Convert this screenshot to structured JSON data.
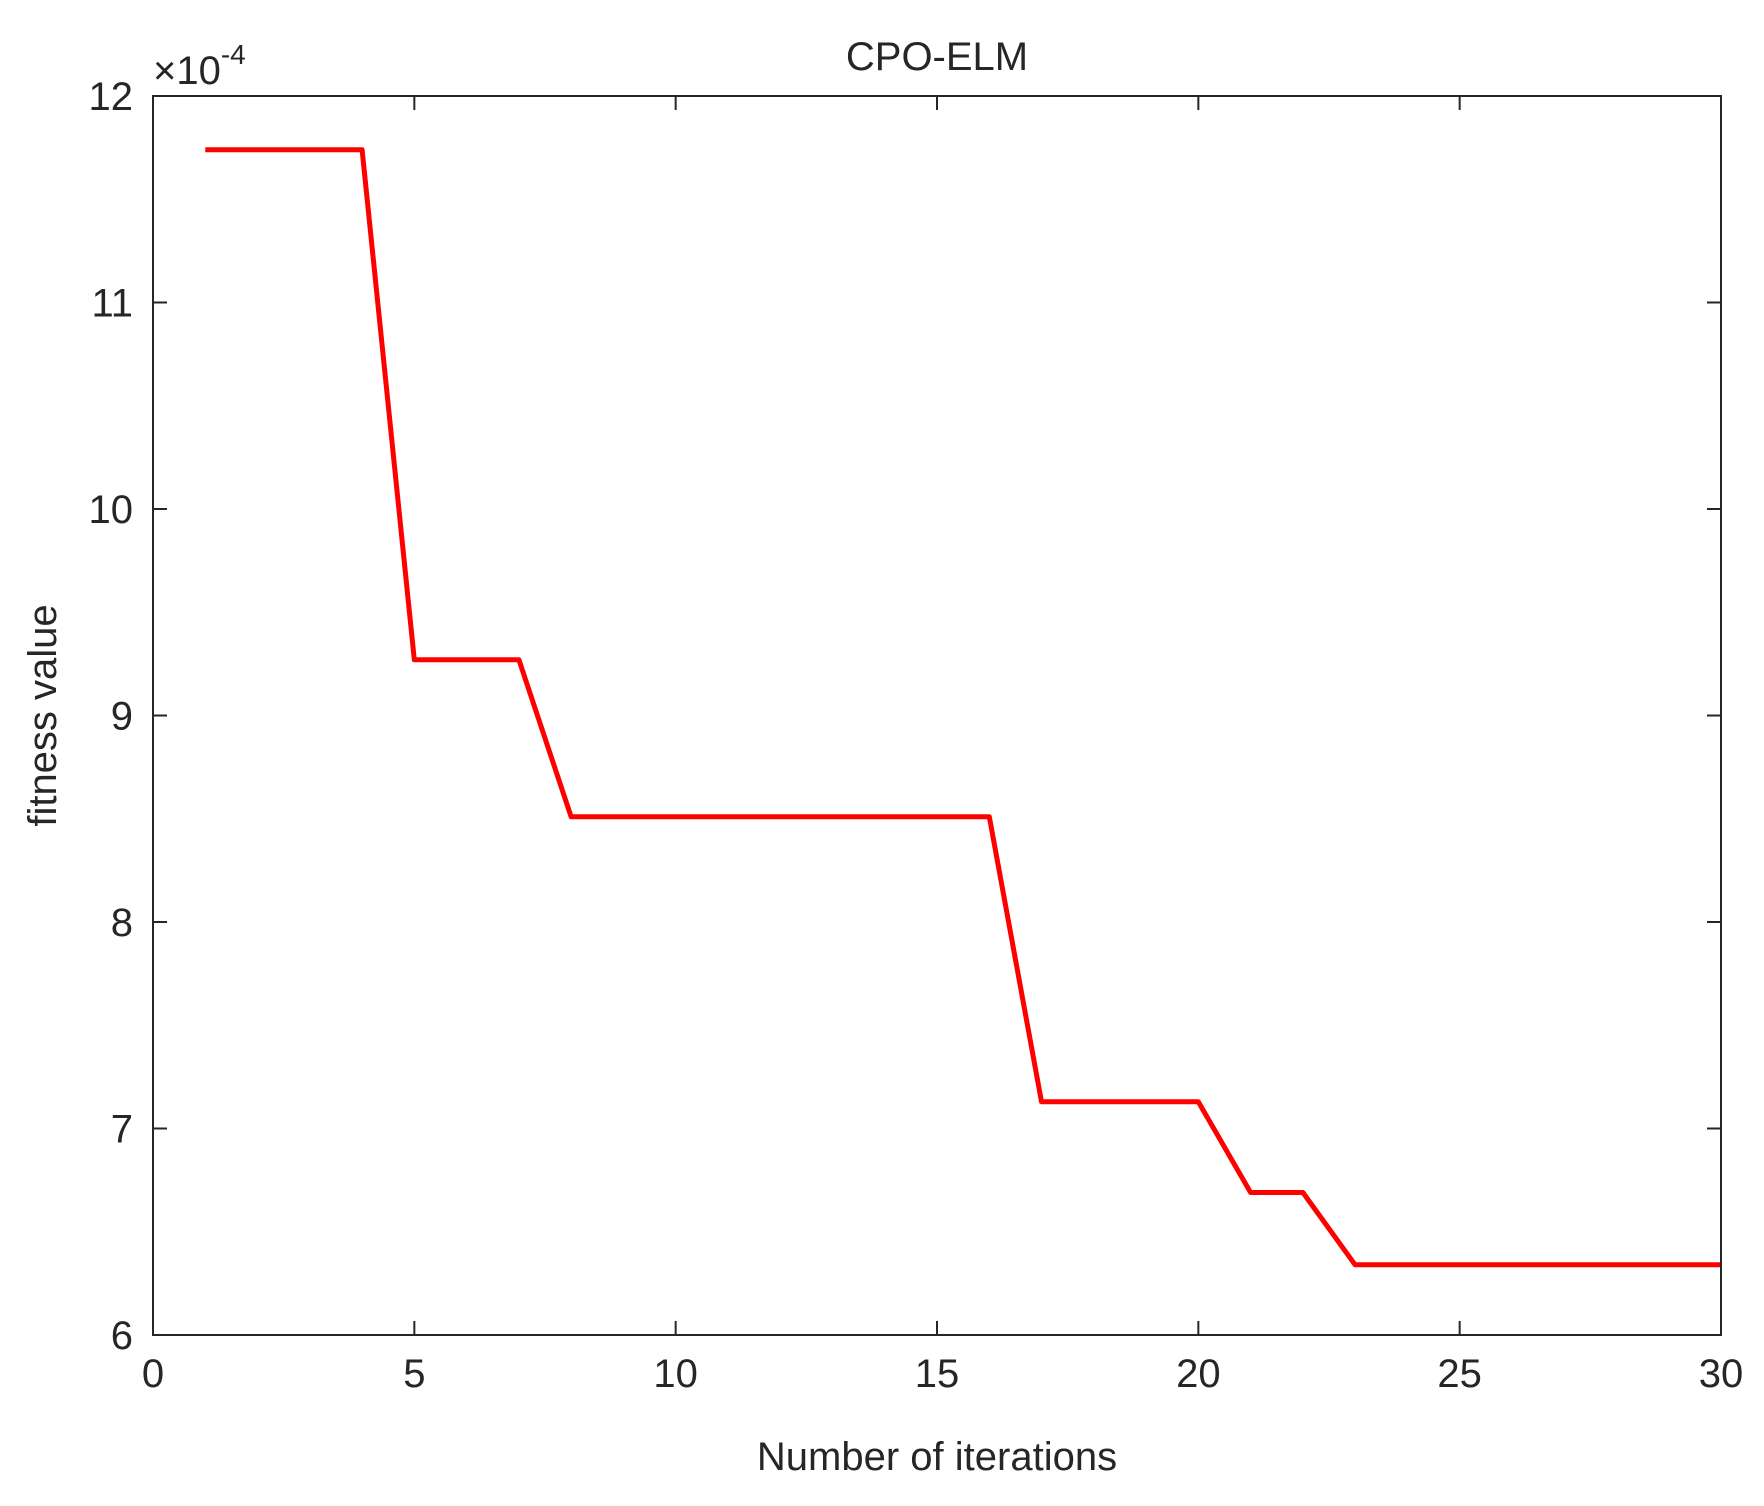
{
  "chart_data": {
    "type": "line",
    "title": "CPO-ELM",
    "xlabel": "Number of iterations",
    "ylabel": "fitness value",
    "y_exponent_label": {
      "prefix": "×10",
      "power": "-4"
    },
    "xlim": [
      0,
      30
    ],
    "ylim": [
      6,
      12
    ],
    "xticks": [
      0,
      5,
      10,
      15,
      20,
      25,
      30
    ],
    "yticks": [
      6,
      7,
      8,
      9,
      10,
      11,
      12
    ],
    "grid": false,
    "series": [
      {
        "color": "#ff0000",
        "x": [
          1,
          2,
          3,
          4,
          5,
          6,
          7,
          8,
          9,
          10,
          11,
          12,
          13,
          14,
          15,
          16,
          17,
          18,
          19,
          20,
          21,
          22,
          23,
          24,
          25,
          26,
          27,
          28,
          29,
          30
        ],
        "y": [
          11.74,
          11.74,
          11.74,
          11.74,
          9.27,
          9.27,
          9.27,
          8.51,
          8.51,
          8.51,
          8.51,
          8.51,
          8.51,
          8.51,
          8.51,
          8.51,
          7.13,
          7.13,
          7.13,
          7.13,
          6.69,
          6.69,
          6.34,
          6.34,
          6.34,
          6.34,
          6.34,
          6.34,
          6.34,
          6.34
        ]
      }
    ]
  }
}
